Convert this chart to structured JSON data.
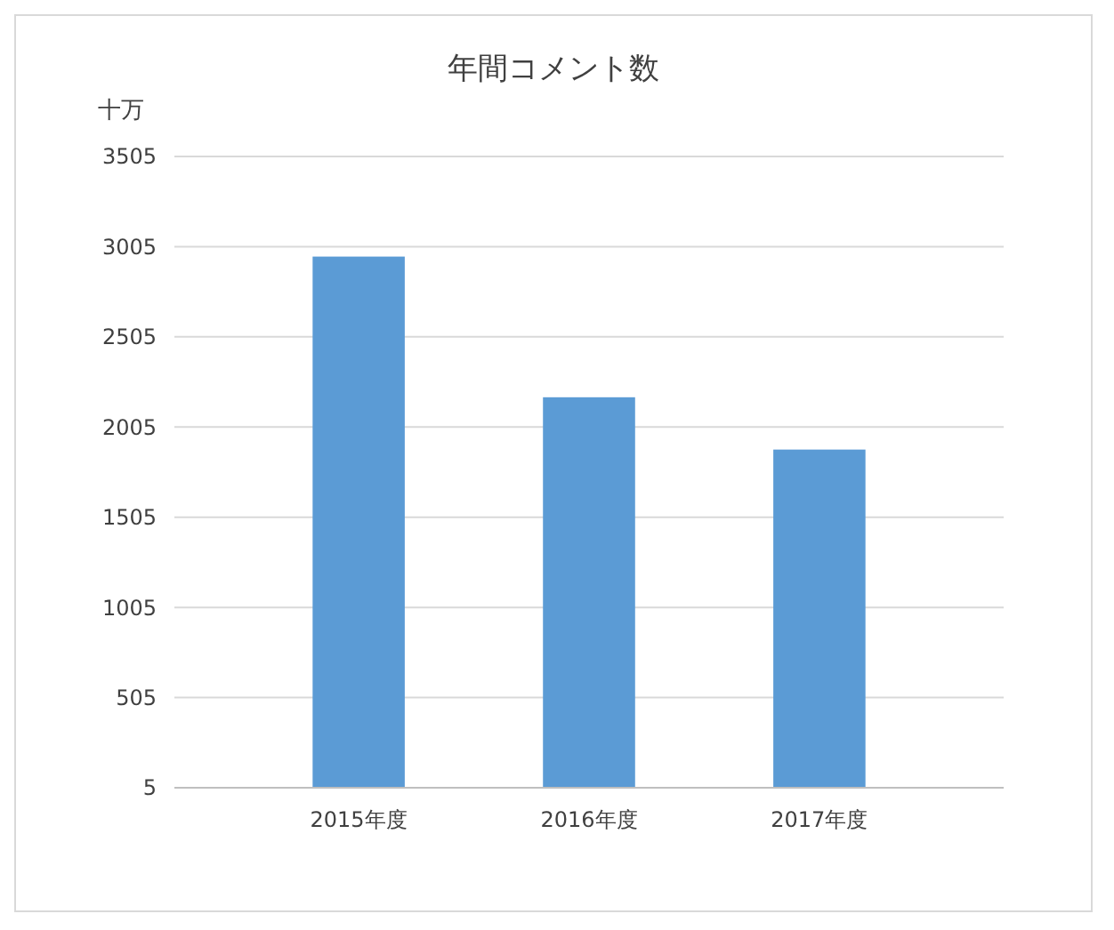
{
  "chart_data": {
    "type": "bar",
    "title": "年間コメント数",
    "ylabel": "十万",
    "categories": [
      "2015年度",
      "2016年度",
      "2017年度"
    ],
    "values": [
      2950,
      2170,
      1880
    ],
    "color": "#5b9bd5",
    "ylim": [
      5,
      3505
    ],
    "yticks": [
      5,
      505,
      1005,
      1505,
      2005,
      2505,
      3005,
      3505
    ],
    "grid": "y"
  }
}
